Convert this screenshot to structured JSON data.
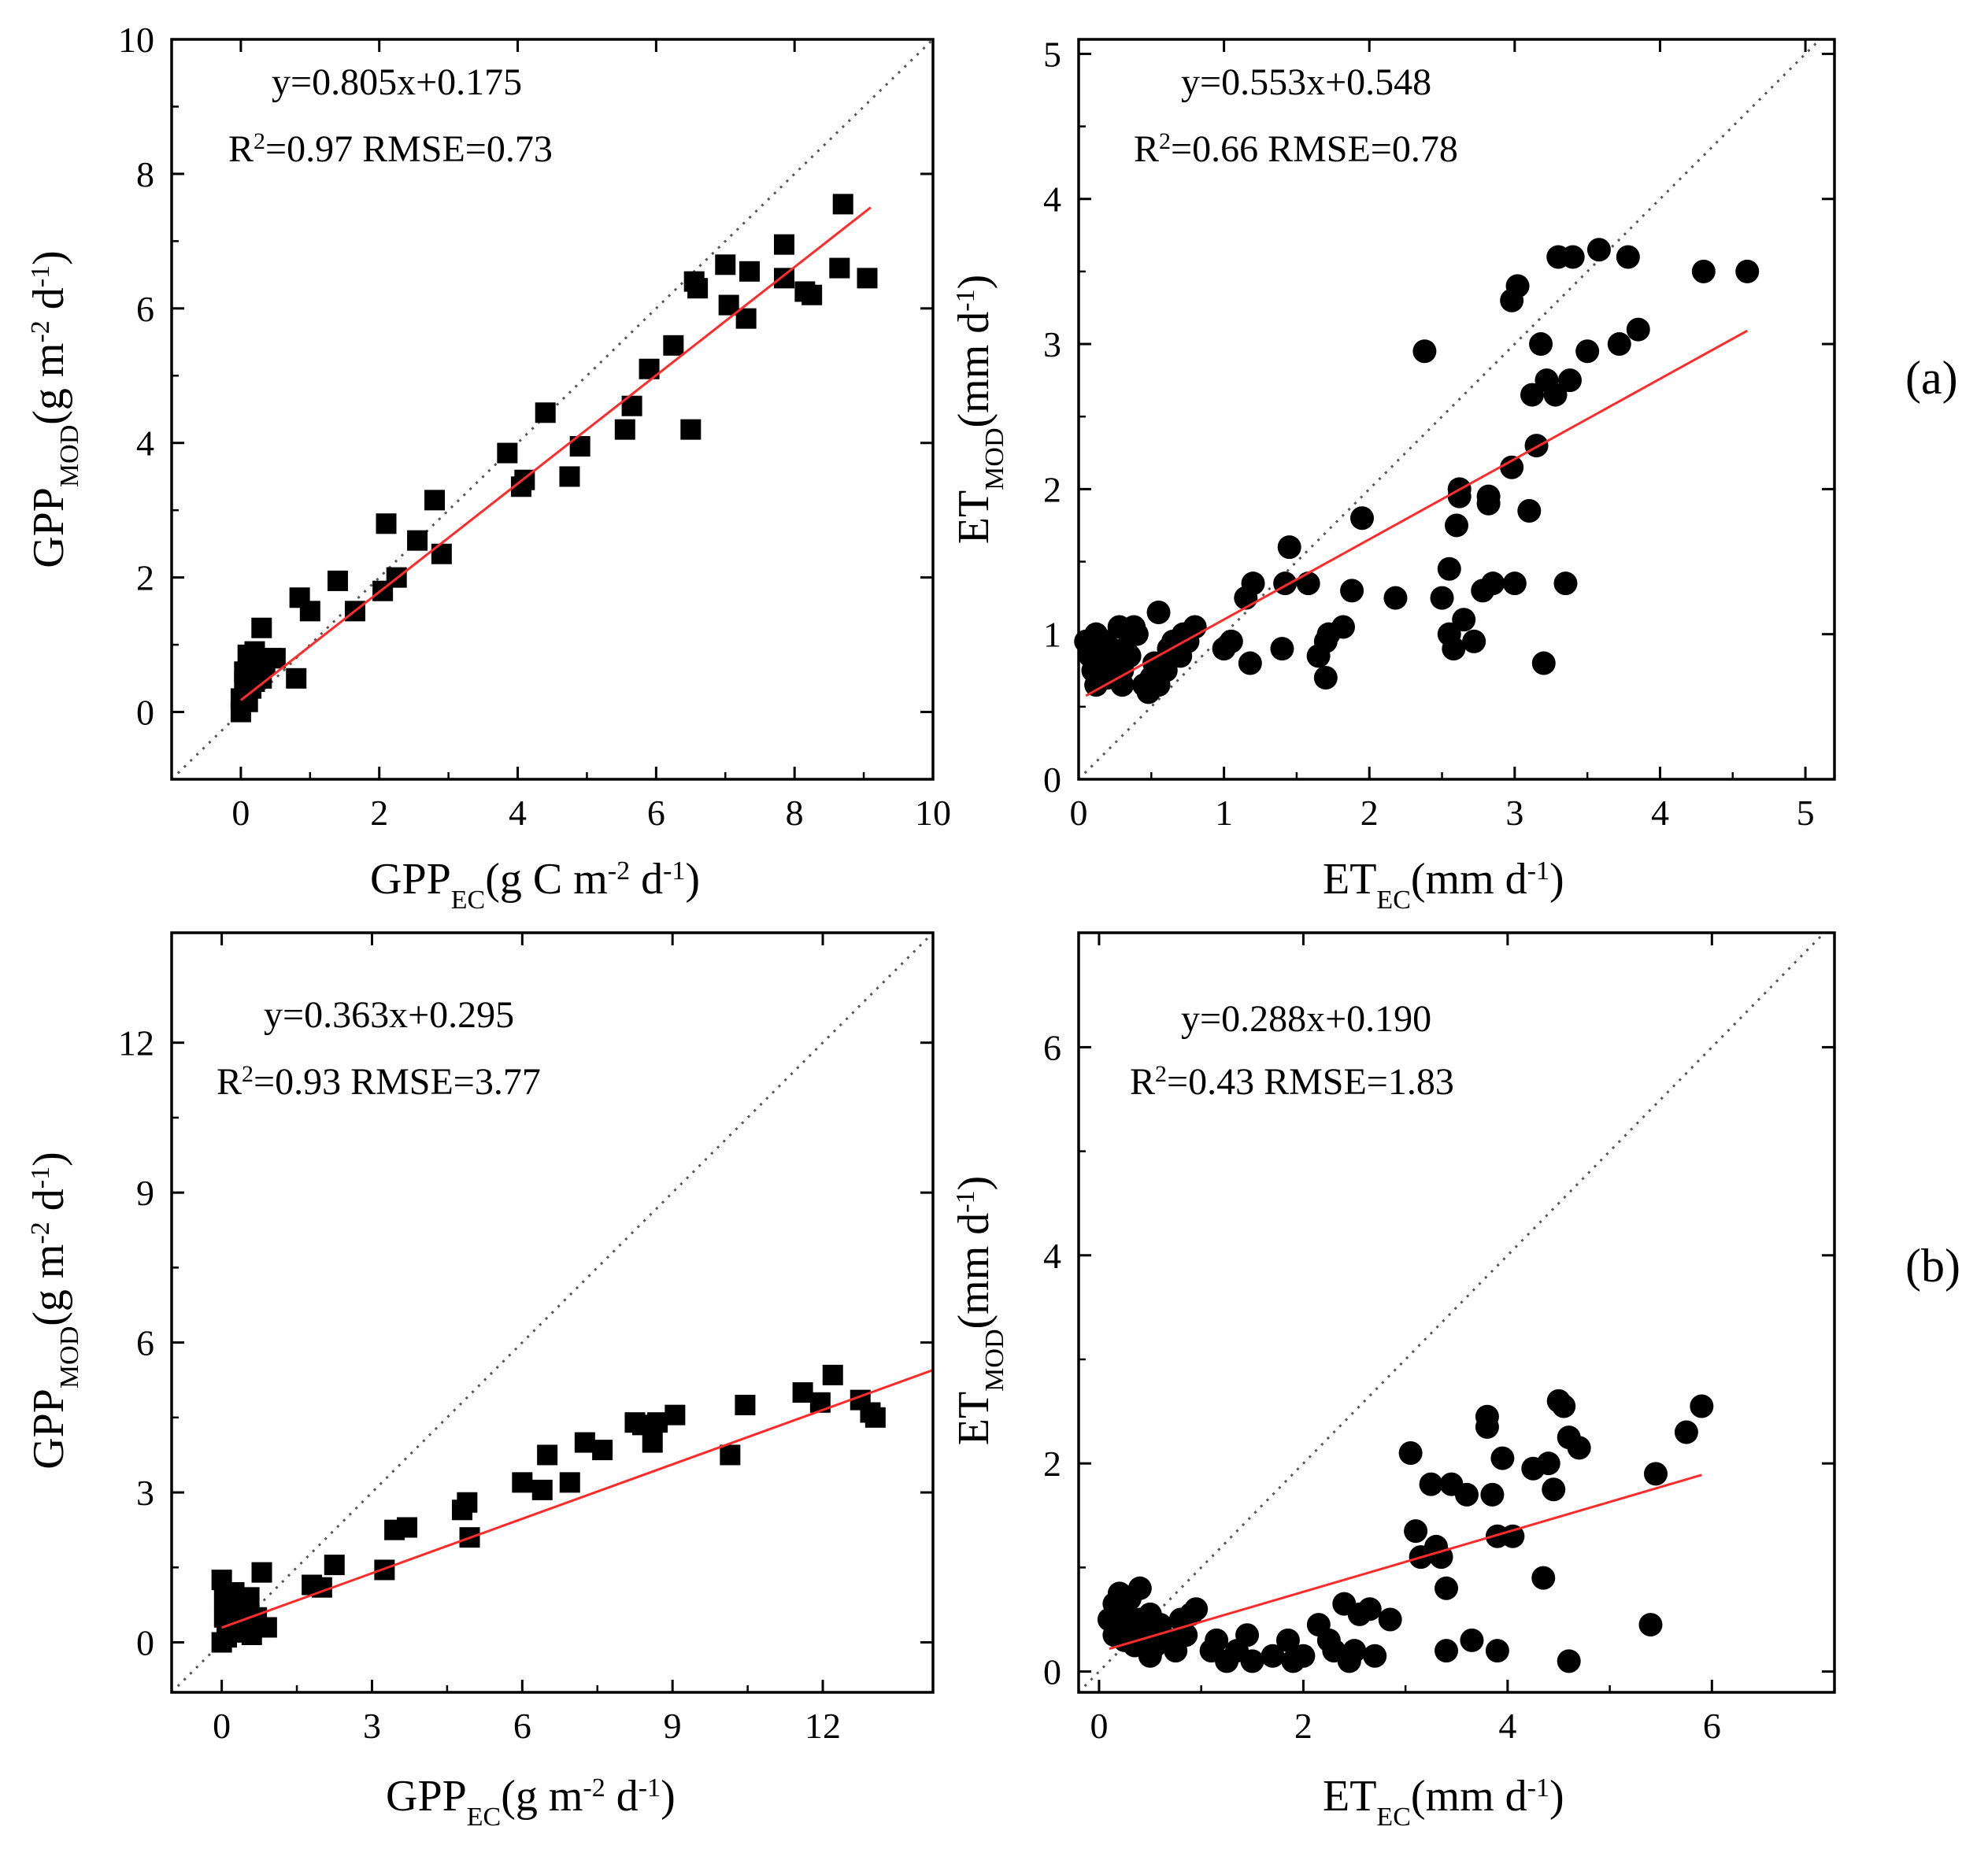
{
  "figure": {
    "panel_labels": [
      "(a)",
      "(b)"
    ]
  },
  "chart_data": [
    {
      "id": "a-gpp",
      "type": "scatter",
      "marker": "square",
      "colors": {
        "points": "#000000",
        "fit_line": "#ff2a2a",
        "one_to_one": "#555555"
      },
      "equation": "y=0.805x+0.175",
      "stats": {
        "r2_prefix": "R",
        "r2_exp": "2",
        "r2_rest": "=0.97 RMSE=0.73"
      },
      "fit": {
        "slope": 0.805,
        "intercept": 0.175,
        "x_range": [
          0,
          9.1
        ]
      },
      "xlabel": {
        "main": "GPP",
        "sub": "EC",
        "parts": [
          [
            "(g C m",
            "n"
          ],
          [
            "-2",
            "sup"
          ],
          [
            " d",
            "n"
          ],
          [
            "-1",
            "sup"
          ],
          [
            ")",
            "n"
          ]
        ]
      },
      "ylabel": {
        "main": "GPP",
        "sub": "MOD",
        "parts": [
          [
            "(g m",
            "n"
          ],
          [
            "-2",
            "sup"
          ],
          [
            " d",
            "n"
          ],
          [
            "-1",
            "sup"
          ],
          [
            ")",
            "n"
          ]
        ]
      },
      "xlim": [
        -1,
        10
      ],
      "ylim": [
        -1,
        10
      ],
      "xticks": [
        0,
        2,
        4,
        6,
        8,
        10
      ],
      "xtick_labels": [
        "0",
        "2",
        "4",
        "6",
        "8",
        "10"
      ],
      "yticks": [
        0,
        2,
        4,
        6,
        8,
        10
      ],
      "ytick_labels": [
        "0",
        "2",
        "4",
        "6",
        "8",
        "10"
      ],
      "x": [
        0.0,
        0.0,
        0.05,
        0.05,
        0.1,
        0.1,
        0.15,
        0.15,
        0.2,
        0.2,
        0.25,
        0.3,
        0.3,
        0.35,
        0.45,
        0.5,
        0.8,
        0.85,
        1.0,
        1.4,
        1.65,
        2.05,
        2.1,
        2.25,
        2.55,
        2.8,
        2.9,
        3.85,
        4.05,
        4.1,
        4.4,
        4.75,
        4.9,
        5.55,
        5.65,
        5.9,
        6.25,
        6.5,
        6.55,
        6.6,
        7.0,
        7.05,
        7.3,
        7.35,
        7.85,
        7.85,
        8.15,
        8.25,
        8.65,
        8.7,
        9.05
      ],
      "y": [
        0.0,
        0.2,
        0.45,
        0.6,
        0.15,
        0.85,
        0.35,
        0.65,
        0.45,
        0.9,
        0.8,
        0.5,
        1.25,
        0.7,
        0.8,
        0.8,
        0.5,
        1.7,
        1.5,
        1.95,
        1.5,
        1.8,
        2.8,
        2.0,
        2.55,
        3.15,
        2.35,
        3.85,
        3.35,
        3.45,
        4.45,
        3.5,
        3.95,
        4.2,
        4.55,
        5.1,
        5.45,
        4.2,
        6.4,
        6.3,
        6.65,
        6.05,
        5.85,
        6.55,
        6.95,
        6.45,
        6.25,
        6.2,
        6.6,
        7.55,
        6.45
      ]
    },
    {
      "id": "a-et",
      "type": "scatter",
      "marker": "circle",
      "colors": {
        "points": "#000000",
        "fit_line": "#ff2a2a",
        "one_to_one": "#555555"
      },
      "equation": "y=0.553x+0.548",
      "stats": {
        "r2_prefix": "R",
        "r2_exp": "2",
        "r2_rest": "=0.66 RMSE=0.78"
      },
      "fit": {
        "slope": 0.553,
        "intercept": 0.548,
        "x_range": [
          0.05,
          4.6
        ]
      },
      "xlabel": {
        "main": "ET",
        "sub": "EC",
        "parts": [
          [
            "(mm d",
            "n"
          ],
          [
            "-1",
            "sup"
          ],
          [
            ")",
            "n"
          ]
        ]
      },
      "ylabel": {
        "main": "ET",
        "sub": "MOD",
        "parts": [
          [
            "(mm d",
            "n"
          ],
          [
            "-1",
            "sup"
          ],
          [
            ")",
            "n"
          ]
        ]
      },
      "xlim": [
        0,
        5.2
      ],
      "ylim": [
        0,
        5.1
      ],
      "xticks": [
        0,
        1,
        2,
        3,
        4,
        5
      ],
      "xtick_labels": [
        "0",
        "1",
        "2",
        "3",
        "4",
        "5"
      ],
      "yticks": [
        0,
        1,
        2,
        3,
        4,
        5
      ],
      "ytick_labels": [
        "0",
        "1",
        "2",
        "3",
        "4",
        "5"
      ],
      "x": [
        0.05,
        0.08,
        0.1,
        0.12,
        0.12,
        0.15,
        0.18,
        0.2,
        0.22,
        0.25,
        0.28,
        0.3,
        0.3,
        0.32,
        0.35,
        0.38,
        0.4,
        0.45,
        0.48,
        0.5,
        0.52,
        0.55,
        0.55,
        0.6,
        0.62,
        0.65,
        0.7,
        0.72,
        0.75,
        0.8,
        1.0,
        1.05,
        1.15,
        1.18,
        1.2,
        1.4,
        1.42,
        1.45,
        1.58,
        1.65,
        1.7,
        1.7,
        1.72,
        1.82,
        1.88,
        1.95,
        2.18,
        2.38,
        2.5,
        2.55,
        2.55,
        2.58,
        2.6,
        2.62,
        2.62,
        2.65,
        2.72,
        2.78,
        2.82,
        2.82,
        2.85,
        2.98,
        2.98,
        3.0,
        3.02,
        3.1,
        3.12,
        3.15,
        3.18,
        3.2,
        3.22,
        3.28,
        3.3,
        3.35,
        3.38,
        3.4,
        3.5,
        3.58,
        3.72,
        3.78,
        3.85,
        4.3,
        4.6
      ],
      "y": [
        0.95,
        0.85,
        0.75,
        1.0,
        0.65,
        0.8,
        0.95,
        0.7,
        0.9,
        0.85,
        1.05,
        0.75,
        0.65,
        0.9,
        0.85,
        1.05,
        1.0,
        0.65,
        0.6,
        0.7,
        0.8,
        1.15,
        0.65,
        0.75,
        0.9,
        0.95,
        0.85,
        1.0,
        0.95,
        1.05,
        0.9,
        0.95,
        1.25,
        0.8,
        1.35,
        0.9,
        1.35,
        1.6,
        1.35,
        0.85,
        0.7,
        0.95,
        1.0,
        1.05,
        1.3,
        1.8,
        1.25,
        2.95,
        1.25,
        1.0,
        1.45,
        0.9,
        1.75,
        1.95,
        2.0,
        1.1,
        0.95,
        1.3,
        1.9,
        1.95,
        1.35,
        3.3,
        2.15,
        1.35,
        3.4,
        1.85,
        2.65,
        2.3,
        3.0,
        0.8,
        2.75,
        2.65,
        3.6,
        1.35,
        2.75,
        3.6,
        2.95,
        3.65,
        3.0,
        3.6,
        3.1,
        3.5,
        3.5
      ]
    },
    {
      "id": "b-gpp",
      "type": "scatter",
      "marker": "square",
      "colors": {
        "points": "#000000",
        "fit_line": "#ff2a2a",
        "one_to_one": "#555555"
      },
      "equation": "y=0.363x+0.295",
      "stats": {
        "r2_prefix": "R",
        "r2_exp": "2",
        "r2_rest": "=0.93 RMSE=3.77"
      },
      "fit": {
        "slope": 0.363,
        "intercept": 0.295,
        "x_range": [
          0,
          14.2
        ]
      },
      "xlabel": {
        "main": "GPP",
        "sub": "EC",
        "parts": [
          [
            "(g m",
            "n"
          ],
          [
            "-2",
            "sup"
          ],
          [
            " d",
            "n"
          ],
          [
            "-1",
            "sup"
          ],
          [
            ")",
            "n"
          ]
        ]
      },
      "ylabel": {
        "main": "GPP",
        "sub": "MOD",
        "parts": [
          [
            "(g m",
            "n"
          ],
          [
            "-2",
            "sup"
          ],
          [
            " d",
            "n"
          ],
          [
            "-1",
            "sup"
          ],
          [
            ")",
            "n"
          ]
        ]
      },
      "xlim": [
        -1,
        14.2
      ],
      "ylim": [
        -1,
        14.2
      ],
      "xticks": [
        0,
        3,
        6,
        9,
        12
      ],
      "xtick_labels": [
        "0",
        "3",
        "6",
        "9",
        "12"
      ],
      "yticks": [
        0,
        3,
        6,
        9,
        12
      ],
      "ytick_labels": [
        "0",
        "3",
        "6",
        "9",
        "12"
      ],
      "x": [
        0.0,
        0.0,
        0.05,
        0.05,
        0.1,
        0.1,
        0.15,
        0.2,
        0.25,
        0.3,
        0.35,
        0.4,
        0.45,
        0.5,
        0.55,
        0.6,
        0.7,
        0.8,
        0.9,
        1.8,
        2.0,
        2.25,
        3.25,
        3.45,
        3.7,
        4.8,
        4.9,
        4.95,
        6.0,
        6.4,
        6.5,
        6.95,
        7.25,
        7.6,
        8.25,
        8.4,
        8.6,
        8.7,
        9.05,
        10.15,
        10.45,
        11.6,
        11.95,
        12.2,
        12.75,
        12.95,
        13.05
      ],
      "y": [
        0.0,
        1.25,
        0.5,
        0.9,
        0.1,
        0.3,
        0.6,
        0.45,
        1.0,
        0.2,
        0.4,
        0.8,
        0.3,
        0.6,
        0.9,
        0.15,
        0.5,
        1.4,
        0.3,
        1.15,
        1.1,
        1.55,
        1.45,
        2.25,
        2.3,
        2.65,
        2.8,
        2.1,
        3.2,
        3.05,
        3.75,
        3.2,
        4.0,
        3.85,
        4.4,
        4.35,
        4.0,
        4.4,
        4.55,
        3.75,
        4.75,
        5.0,
        4.8,
        5.35,
        4.85,
        4.6,
        4.5
      ]
    },
    {
      "id": "b-et",
      "type": "scatter",
      "marker": "circle",
      "colors": {
        "points": "#000000",
        "fit_line": "#ff2a2a",
        "one_to_one": "#555555"
      },
      "equation": "y=0.288x+0.190",
      "stats": {
        "r2_prefix": "R",
        "r2_exp": "2",
        "r2_rest": "=0.43 RMSE=1.83"
      },
      "fit": {
        "slope": 0.288,
        "intercept": 0.19,
        "x_range": [
          0.1,
          5.9
        ]
      },
      "xlabel": {
        "main": "ET",
        "sub": "EC",
        "parts": [
          [
            "(mm d",
            "n"
          ],
          [
            "-1",
            "sup"
          ],
          [
            ")",
            "n"
          ]
        ]
      },
      "ylabel": {
        "main": "ET",
        "sub": "MOD",
        "parts": [
          [
            "(mm d",
            "n"
          ],
          [
            "-1",
            "sup"
          ],
          [
            ")",
            "n"
          ]
        ]
      },
      "xlim": [
        -0.2,
        7.2
      ],
      "ylim": [
        -0.2,
        7.1
      ],
      "xticks": [
        0,
        2,
        4,
        6
      ],
      "xtick_labels": [
        "0",
        "2",
        "4",
        "6"
      ],
      "yticks": [
        0,
        2,
        4,
        6
      ],
      "ytick_labels": [
        "0",
        "2",
        "4",
        "6"
      ],
      "x": [
        0.1,
        0.15,
        0.15,
        0.2,
        0.2,
        0.25,
        0.25,
        0.3,
        0.3,
        0.35,
        0.4,
        0.4,
        0.45,
        0.5,
        0.5,
        0.55,
        0.6,
        0.7,
        0.75,
        0.8,
        0.85,
        0.9,
        0.95,
        1.1,
        1.15,
        1.25,
        1.35,
        1.45,
        1.5,
        1.7,
        1.85,
        1.9,
        2.0,
        2.15,
        2.25,
        2.3,
        2.4,
        2.45,
        2.5,
        2.55,
        2.65,
        2.7,
        2.85,
        3.05,
        3.1,
        3.15,
        3.25,
        3.3,
        3.35,
        3.4,
        3.4,
        3.45,
        3.6,
        3.65,
        3.8,
        3.8,
        3.85,
        3.9,
        3.9,
        3.95,
        4.05,
        4.25,
        4.35,
        4.4,
        4.45,
        4.5,
        4.55,
        4.6,
        4.6,
        4.7,
        5.4,
        5.45,
        5.75,
        5.9
      ],
      "y": [
        0.5,
        0.35,
        0.65,
        0.45,
        0.75,
        0.3,
        0.55,
        0.45,
        0.7,
        0.25,
        0.5,
        0.8,
        0.4,
        0.15,
        0.55,
        0.25,
        0.45,
        0.3,
        0.2,
        0.5,
        0.35,
        0.55,
        0.6,
        0.2,
        0.3,
        0.1,
        0.2,
        0.35,
        0.1,
        0.15,
        0.3,
        0.1,
        0.15,
        0.45,
        0.3,
        0.2,
        0.65,
        0.1,
        0.2,
        0.55,
        0.6,
        0.15,
        0.5,
        2.1,
        1.35,
        1.1,
        1.8,
        1.2,
        1.1,
        0.8,
        0.2,
        1.8,
        1.7,
        0.3,
        2.45,
        2.35,
        1.7,
        1.3,
        0.2,
        2.05,
        1.3,
        1.95,
        0.9,
        2.0,
        1.75,
        2.6,
        2.55,
        2.25,
        0.1,
        2.15,
        0.45,
        1.9,
        2.3,
        2.55
      ]
    }
  ]
}
